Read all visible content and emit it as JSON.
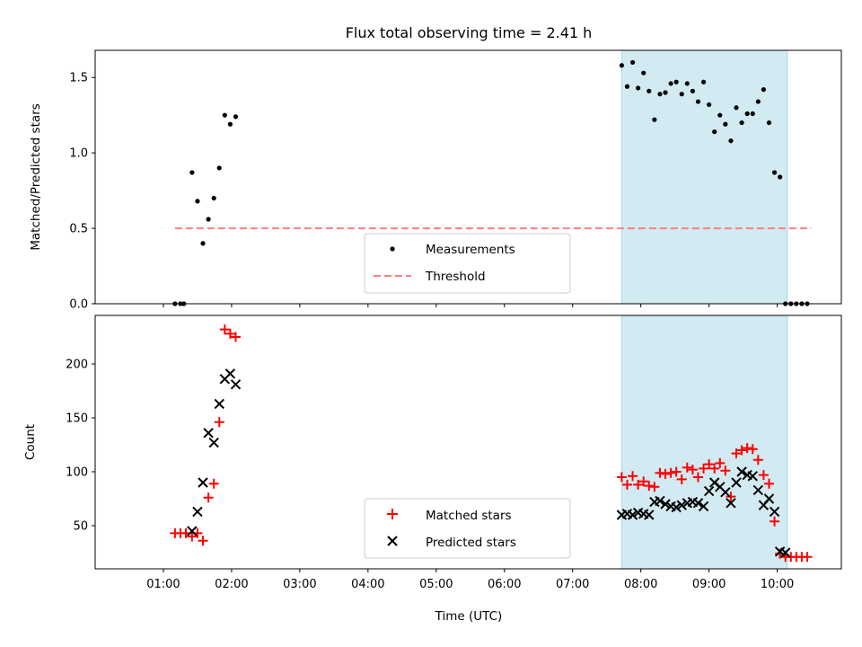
{
  "chart_data": {
    "title": "Flux total observing time = 2.41 h",
    "xlabel": "Time (UTC)",
    "x_ticks": [
      "01:00",
      "02:00",
      "03:00",
      "04:00",
      "05:00",
      "06:00",
      "07:00",
      "08:00",
      "09:00",
      "10:00"
    ],
    "x_tick_hours": [
      1,
      2,
      3,
      4,
      5,
      6,
      7,
      8,
      9,
      10
    ],
    "xlim_hours": [
      0.0,
      10.94
    ],
    "shaded_span_hours": [
      7.72,
      10.15
    ],
    "shaded_color": "#add8e6",
    "panels": [
      {
        "type": "scatter",
        "ylabel": "Matched/Predicted stars",
        "ylim": [
          0,
          1.68
        ],
        "y_ticks": [
          0.0,
          0.5,
          1.0,
          1.5
        ],
        "y_tick_labels": [
          "0.0",
          "0.5",
          "1.0",
          "1.5"
        ],
        "threshold": {
          "name": "Threshold",
          "value": 0.5,
          "x_range_hours": [
            1.17,
            10.5
          ],
          "color": "#ff7f7f"
        },
        "legend": {
          "placement": "lower-center",
          "entries": [
            "Measurements",
            "Threshold"
          ]
        },
        "series": [
          {
            "name": "Measurements",
            "color": "#000000",
            "marker": "dot",
            "x": [
              1.17,
              1.25,
              1.3,
              1.42,
              1.5,
              1.58,
              1.66,
              1.74,
              1.82,
              1.9,
              1.98,
              2.06,
              7.72,
              7.8,
              7.88,
              7.96,
              8.04,
              8.12,
              8.2,
              8.28,
              8.36,
              8.44,
              8.52,
              8.6,
              8.68,
              8.76,
              8.84,
              8.92,
              9.0,
              9.08,
              9.16,
              9.24,
              9.32,
              9.4,
              9.48,
              9.56,
              9.64,
              9.72,
              9.8,
              9.88,
              9.96,
              10.04,
              10.12,
              10.2,
              10.28,
              10.36,
              10.44
            ],
            "y": [
              0,
              0,
              0,
              0.87,
              0.68,
              0.4,
              0.56,
              0.7,
              0.9,
              1.25,
              1.19,
              1.24,
              1.58,
              1.44,
              1.6,
              1.43,
              1.53,
              1.41,
              1.22,
              1.39,
              1.4,
              1.46,
              1.47,
              1.39,
              1.46,
              1.41,
              1.34,
              1.47,
              1.32,
              1.14,
              1.25,
              1.19,
              1.08,
              1.3,
              1.2,
              1.26,
              1.26,
              1.34,
              1.42,
              1.2,
              0.87,
              0.84,
              0,
              0,
              0,
              0,
              0
            ]
          }
        ]
      },
      {
        "type": "scatter",
        "ylabel": "Count",
        "ylim": [
          10,
          245
        ],
        "y_ticks": [
          50,
          100,
          150,
          200
        ],
        "y_tick_labels": [
          "50",
          "100",
          "150",
          "200"
        ],
        "legend": {
          "placement": "lower-center",
          "entries": [
            "Matched stars",
            "Predicted stars"
          ]
        },
        "series": [
          {
            "name": "Matched stars",
            "color": "#ff0000",
            "marker": "plus",
            "x": [
              1.17,
              1.25,
              1.33,
              1.42,
              1.5,
              1.58,
              1.66,
              1.74,
              1.82,
              1.9,
              1.98,
              2.06,
              7.72,
              7.8,
              7.88,
              7.96,
              8.04,
              8.12,
              8.2,
              8.28,
              8.36,
              8.44,
              8.52,
              8.6,
              8.68,
              8.76,
              8.84,
              8.92,
              9.0,
              9.08,
              9.16,
              9.24,
              9.32,
              9.4,
              9.48,
              9.56,
              9.64,
              9.72,
              9.8,
              9.88,
              9.96,
              10.04,
              10.12,
              10.2,
              10.28,
              10.36,
              10.44
            ],
            "y": [
              43,
              43,
              43,
              40,
              43,
              36,
              76,
              89,
              146,
              232,
              228,
              225,
              95,
              88,
              96,
              88,
              91,
              87,
              86,
              99,
              98,
              99,
              100,
              93,
              104,
              102,
              95,
              103,
              107,
              103,
              108,
              101,
              77,
              117,
              120,
              122,
              121,
              111,
              97,
              89,
              54,
              24,
              21,
              21,
              21,
              21,
              21
            ]
          },
          {
            "name": "Predicted stars",
            "color": "#000000",
            "marker": "x",
            "x": [
              1.42,
              1.5,
              1.58,
              1.66,
              1.74,
              1.82,
              1.9,
              1.98,
              2.06,
              7.72,
              7.8,
              7.88,
              7.96,
              8.04,
              8.12,
              8.2,
              8.28,
              8.36,
              8.44,
              8.52,
              8.6,
              8.68,
              8.76,
              8.84,
              8.92,
              9.0,
              9.08,
              9.16,
              9.24,
              9.32,
              9.4,
              9.48,
              9.56,
              9.64,
              9.72,
              9.8,
              9.88,
              9.96,
              10.04,
              10.12
            ],
            "y": [
              45,
              63,
              90,
              136,
              127,
              163,
              186,
              191,
              181,
              60,
              61,
              60,
              62,
              61,
              60,
              72,
              73,
              70,
              68,
              67,
              69,
              71,
              72,
              71,
              68,
              82,
              90,
              86,
              81,
              71,
              90,
              100,
              97,
              96,
              83,
              69,
              75,
              63,
              26,
              25
            ]
          }
        ]
      }
    ]
  }
}
